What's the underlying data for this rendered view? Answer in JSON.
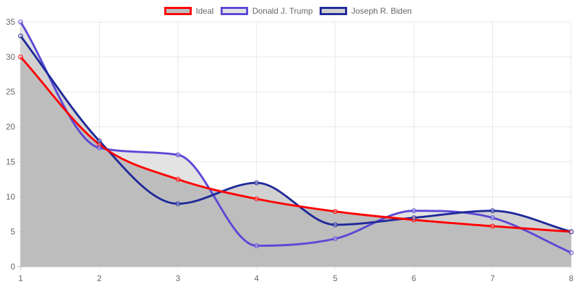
{
  "chart_data": {
    "type": "line",
    "title": "",
    "xlabel": "",
    "ylabel": "",
    "x": [
      1,
      2,
      3,
      4,
      5,
      6,
      7,
      8
    ],
    "xlim": [
      1,
      8
    ],
    "ylim": [
      0,
      35
    ],
    "x_ticks": [
      "1",
      "2",
      "3",
      "4",
      "5",
      "6",
      "7",
      "8"
    ],
    "y_ticks": [
      "0",
      "5",
      "10",
      "15",
      "20",
      "25",
      "30",
      "35"
    ],
    "grid": true,
    "legend_position": "top",
    "series": [
      {
        "name": "Ideal",
        "values": [
          30,
          17.5,
          12.5,
          9.7,
          7.9,
          6.7,
          5.8,
          5
        ],
        "color": "#ff0000",
        "fill": "#bdbdbd"
      },
      {
        "name": "Donald J. Trump",
        "values": [
          35,
          17,
          16,
          3,
          4,
          8,
          7,
          2
        ],
        "color": "#5b48d6",
        "fill": "#e3e3e3"
      },
      {
        "name": "Joseph R. Biden",
        "values": [
          33,
          18,
          9,
          12,
          6,
          7,
          8,
          5
        ],
        "color": "#1f2a99",
        "fill": "#d1d1d1"
      }
    ]
  }
}
